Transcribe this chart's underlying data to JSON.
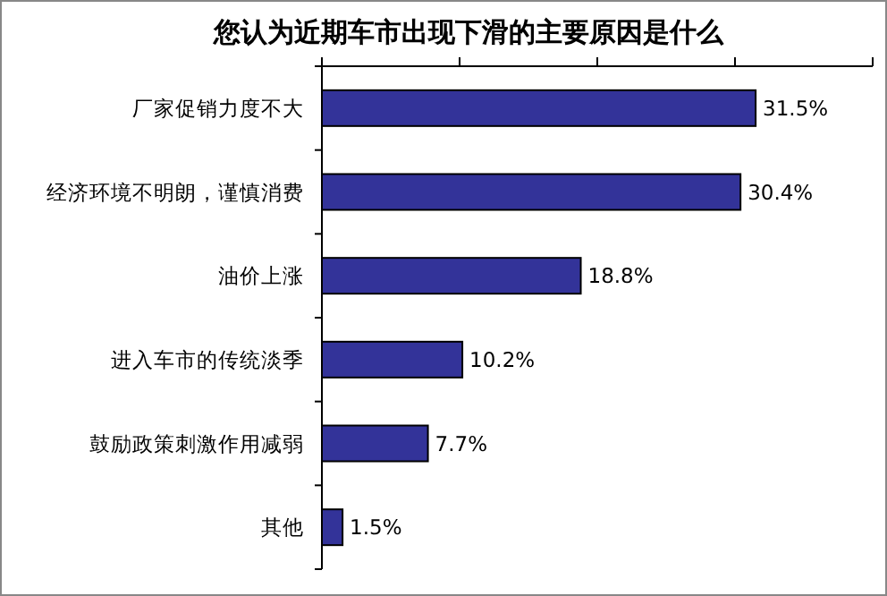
{
  "chart_data": {
    "type": "bar",
    "orientation": "horizontal",
    "title": "您认为近期车市出现下滑的主要原因是什么",
    "categories": [
      "厂家促销力度不大",
      "经济环境不明朗，谨慎消费",
      "油价上涨",
      "进入车市的传统淡季",
      "鼓励政策刺激作用减弱",
      "其他"
    ],
    "values": [
      31.5,
      30.4,
      18.8,
      10.2,
      7.7,
      1.5
    ],
    "value_labels": [
      "31.5%",
      "30.4%",
      "18.8%",
      "10.2%",
      "7.7%",
      "1.5%"
    ],
    "color": "#333399",
    "xlim": [
      0,
      40
    ],
    "xticks": [
      {
        "value": 0,
        "label": null
      },
      {
        "value": 10,
        "label": null
      },
      {
        "value": 20,
        "label": null
      },
      {
        "value": 30,
        "label": null
      },
      {
        "value": 40,
        "label": null
      }
    ],
    "tick_labels": "y",
    "grid": false
  }
}
